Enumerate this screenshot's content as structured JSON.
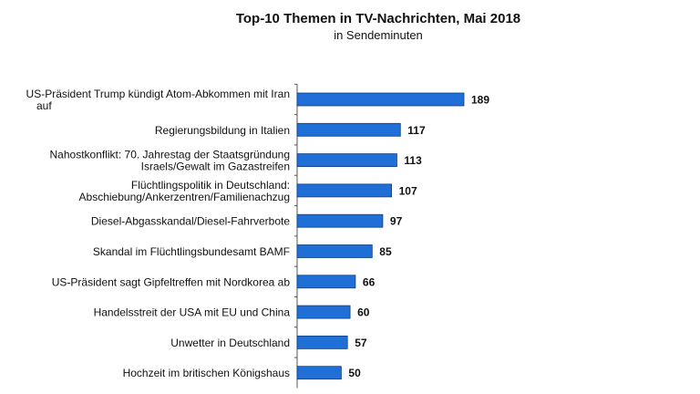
{
  "chart_data": {
    "type": "bar",
    "orientation": "horizontal",
    "title": "Top-10 Themen in TV-Nachrichten, Mai 2018",
    "subtitle": "in Sendeminuten",
    "xlabel": "",
    "ylabel": "",
    "xlim": [
      0,
      189
    ],
    "grid": false,
    "legend": "none",
    "categories": [
      [
        "US-Präsident Trump kündigt Atom-Abkommen mit Iran",
        "auf"
      ],
      [
        "Regierungsbildung in Italien"
      ],
      [
        "Nahostkonflikt: 70. Jahrestag der Staatsgründung",
        "Israels/Gewalt im Gazastreifen"
      ],
      [
        "Flüchtlingspolitik in Deutschland:",
        "Abschiebung/Ankerzentren/Familienachzug"
      ],
      [
        "Diesel-Abgasskandal/Diesel-Fahrverbote"
      ],
      [
        "Skandal im Flüchtlingsbundesamt BAMF"
      ],
      [
        "US-Präsident sagt Gipfeltreffen mit Nordkorea ab"
      ],
      [
        "Handelsstreit der USA mit EU und China"
      ],
      [
        "Unwetter in Deutschland"
      ],
      [
        "Hochzeit im britischen Königshaus"
      ]
    ],
    "values": [
      189,
      117,
      113,
      107,
      97,
      85,
      66,
      60,
      57,
      50
    ],
    "bar_color": "#1f6fd6",
    "bar_edge_color": "#0d3f86"
  }
}
